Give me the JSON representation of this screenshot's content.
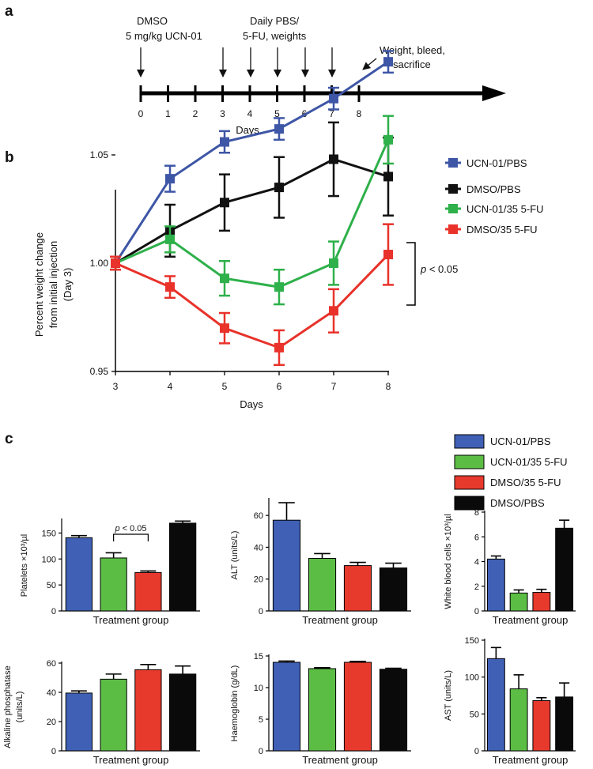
{
  "panels": {
    "a": {
      "letter": "a",
      "ticks": [
        "0",
        "1",
        "2",
        "3",
        "4",
        "5",
        "6",
        "7",
        "8"
      ],
      "xlabel": "Days",
      "annotations": [
        {
          "lines": [
            "DMSO",
            "5 mg/kg UCN-01"
          ]
        },
        {
          "lines": [
            "Daily PBS/",
            "5-FU, weights"
          ]
        },
        {
          "lines": [
            "Weight, bleed,",
            "sacrifice"
          ]
        }
      ]
    },
    "b": {
      "letter": "b"
    },
    "c": {
      "letter": "c"
    }
  },
  "colors": {
    "blue": "#3e56a6",
    "black": "#111111",
    "green": "#2eb04a",
    "red": "#e8322a",
    "bar_blue": "#3f60b5",
    "bar_green": "#5cbd45",
    "bar_red": "#e73a2d",
    "bar_black": "#0a0a0a"
  },
  "chart_data": [
    {
      "panel": "b",
      "type": "line",
      "x": [
        3,
        4,
        5,
        6,
        7,
        8
      ],
      "xlabel": "Days",
      "ylabel": "Percent weight change from initial injection (Day 3)",
      "ylabel_lines": [
        "Percent weight change",
        "from initial injection",
        "(Day 3)"
      ],
      "yticks": [
        "0.95",
        "1.00",
        "1.05"
      ],
      "xticks": [
        "3",
        "4",
        "5",
        "6",
        "7",
        "8"
      ],
      "ylim": [
        0.95,
        1.1
      ],
      "series": [
        {
          "name": "UCN-01/PBS",
          "color": "#3e56a6",
          "values": [
            1.0,
            1.039,
            1.056,
            1.062,
            1.076,
            1.093
          ],
          "errors": [
            0.003,
            0.006,
            0.005,
            0.005,
            0.005,
            0.005
          ]
        },
        {
          "name": "DMSO/PBS",
          "color": "#111111",
          "values": [
            1.0,
            1.015,
            1.028,
            1.035,
            1.048,
            1.04
          ],
          "errors": [
            0.003,
            0.012,
            0.013,
            0.014,
            0.017,
            0.018
          ]
        },
        {
          "name": "UCN-01/35 5-FU",
          "color": "#2eb04a",
          "values": [
            1.0,
            1.011,
            0.993,
            0.989,
            1.0,
            1.057
          ],
          "errors": [
            0.003,
            0.006,
            0.008,
            0.008,
            0.01,
            0.011
          ]
        },
        {
          "name": "DMSO/35 5-FU",
          "color": "#e8322a",
          "values": [
            1.0,
            0.989,
            0.97,
            0.961,
            0.978,
            1.004
          ],
          "errors": [
            0.003,
            0.005,
            0.007,
            0.008,
            0.01,
            0.014
          ]
        }
      ],
      "annotation": {
        "p": "p",
        "text": " < 0.05"
      },
      "legend_position": "top-right"
    },
    {
      "panel": "c",
      "type": "bar",
      "legend": [
        "UCN-01/PBS",
        "UCN-01/35 5-FU",
        "DMSO/35 5-FU",
        "DMSO/PBS"
      ],
      "legend_colors": [
        "#3f60b5",
        "#5cbd45",
        "#e73a2d",
        "#0a0a0a"
      ],
      "subplots": [
        {
          "ylabel_lines": [
            "Platelets ×10³/µl"
          ],
          "xlabel": "Treatment group",
          "yticks": [
            0,
            50,
            100,
            150
          ],
          "ymax": 175,
          "values": [
            141,
            102,
            74,
            169
          ],
          "errors": [
            4,
            10,
            3,
            4
          ],
          "colors": [
            "#3f60b5",
            "#5cbd45",
            "#e73a2d",
            "#0a0a0a"
          ],
          "annotation": {
            "p": "p",
            "text": " < 0.05",
            "from": 1,
            "to": 2
          }
        },
        {
          "ylabel_lines": [
            "ALT (units/L)"
          ],
          "xlabel": "Treatment group",
          "yticks": [
            0,
            20,
            40,
            60
          ],
          "ymax": 70,
          "values": [
            57,
            33,
            28.5,
            27
          ],
          "errors": [
            11,
            3,
            2,
            3
          ],
          "colors": [
            "#3f60b5",
            "#5cbd45",
            "#e73a2d",
            "#0a0a0a"
          ]
        },
        {
          "ylabel_lines": [
            "White blood cells ×10³/µl"
          ],
          "xlabel": "Treatment group",
          "yticks": [
            0,
            2,
            4,
            6,
            8
          ],
          "ymax": 8,
          "values": [
            4.2,
            1.45,
            1.5,
            6.7
          ],
          "errors": [
            0.25,
            0.25,
            0.25,
            0.65
          ],
          "colors": [
            "#3f60b5",
            "#5cbd45",
            "#e73a2d",
            "#0a0a0a"
          ]
        },
        {
          "ylabel_lines": [
            "Alkaline phosphatase",
            "(units/L)"
          ],
          "xlabel": "Treatment group",
          "yticks": [
            0,
            20,
            40,
            60
          ],
          "ymax": 60,
          "values": [
            39.5,
            49,
            55.5,
            52.5
          ],
          "errors": [
            1.5,
            3.5,
            3.5,
            5.5
          ],
          "colors": [
            "#3f60b5",
            "#5cbd45",
            "#e73a2d",
            "#0a0a0a"
          ]
        },
        {
          "ylabel_lines": [
            "Haemoglobin (g/dL)"
          ],
          "xlabel": "Treatment group",
          "yticks": [
            0,
            5,
            10,
            15
          ],
          "ymax": 15,
          "values": [
            14.0,
            13.0,
            14.0,
            12.9
          ],
          "errors": [
            0.2,
            0.15,
            0.15,
            0.15
          ],
          "colors": [
            "#3f60b5",
            "#5cbd45",
            "#e73a2d",
            "#0a0a0a"
          ]
        },
        {
          "ylabel_lines": [
            "AST (units/L)"
          ],
          "xlabel": "Treatment group",
          "yticks": [
            0,
            50,
            100,
            150
          ],
          "ymax": 150,
          "values": [
            125,
            84,
            68,
            73
          ],
          "errors": [
            15,
            19,
            4,
            19
          ],
          "colors": [
            "#3f60b5",
            "#5cbd45",
            "#e73a2d",
            "#0a0a0a"
          ]
        }
      ]
    }
  ]
}
